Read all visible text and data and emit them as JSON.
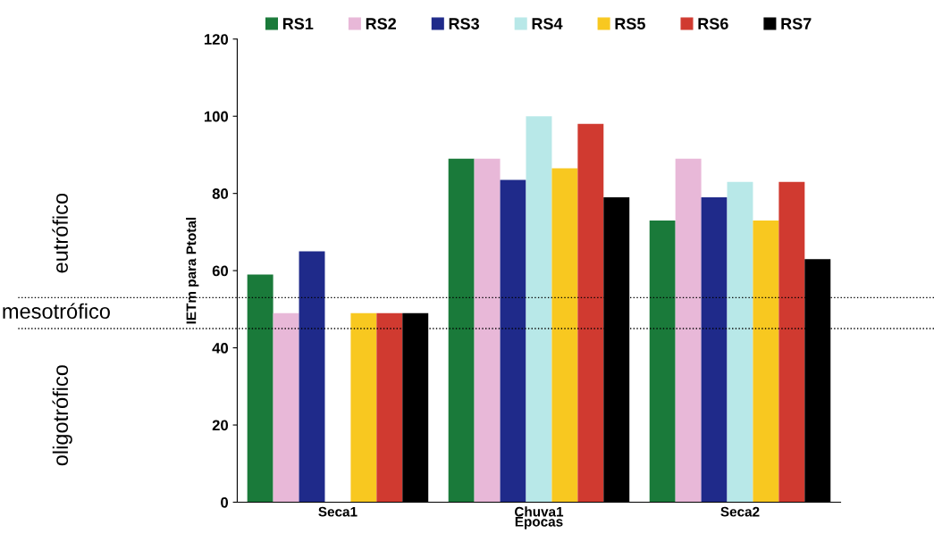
{
  "chart_data": {
    "type": "bar",
    "ylabel": "IETm para Ptotal",
    "xlabel": "Épocas",
    "categories": [
      "Seca1",
      "Chuva1",
      "Seca2"
    ],
    "series": [
      {
        "name": "RS1",
        "color": "#1a7a3a",
        "values": [
          59,
          89,
          73
        ]
      },
      {
        "name": "RS2",
        "color": "#e8b8d8",
        "values": [
          49,
          89,
          89
        ]
      },
      {
        "name": "RS3",
        "color": "#1f2a8a",
        "values": [
          65,
          83.5,
          79
        ]
      },
      {
        "name": "RS4",
        "color": "#b8e8e8",
        "values": [
          null,
          100,
          83
        ]
      },
      {
        "name": "RS5",
        "color": "#f8c820",
        "values": [
          49,
          86.5,
          73
        ]
      },
      {
        "name": "RS6",
        "color": "#d03a30",
        "values": [
          49,
          98,
          83
        ]
      },
      {
        "name": "RS7",
        "color": "#000000",
        "values": [
          49,
          79,
          63
        ]
      }
    ],
    "ylim": [
      0,
      120
    ],
    "yticks": [
      0,
      20,
      40,
      60,
      80,
      100,
      120
    ],
    "ref_lines": [
      {
        "axis": "y",
        "value": 53,
        "line_style": "dotted",
        "color": "#000000"
      },
      {
        "axis": "y",
        "value": 45,
        "line_style": "dotted",
        "color": "#000000"
      }
    ],
    "annotations": [
      "eutrófico",
      "mesotrófico",
      "oligotrófico"
    ],
    "grid": false,
    "legend": "top"
  }
}
